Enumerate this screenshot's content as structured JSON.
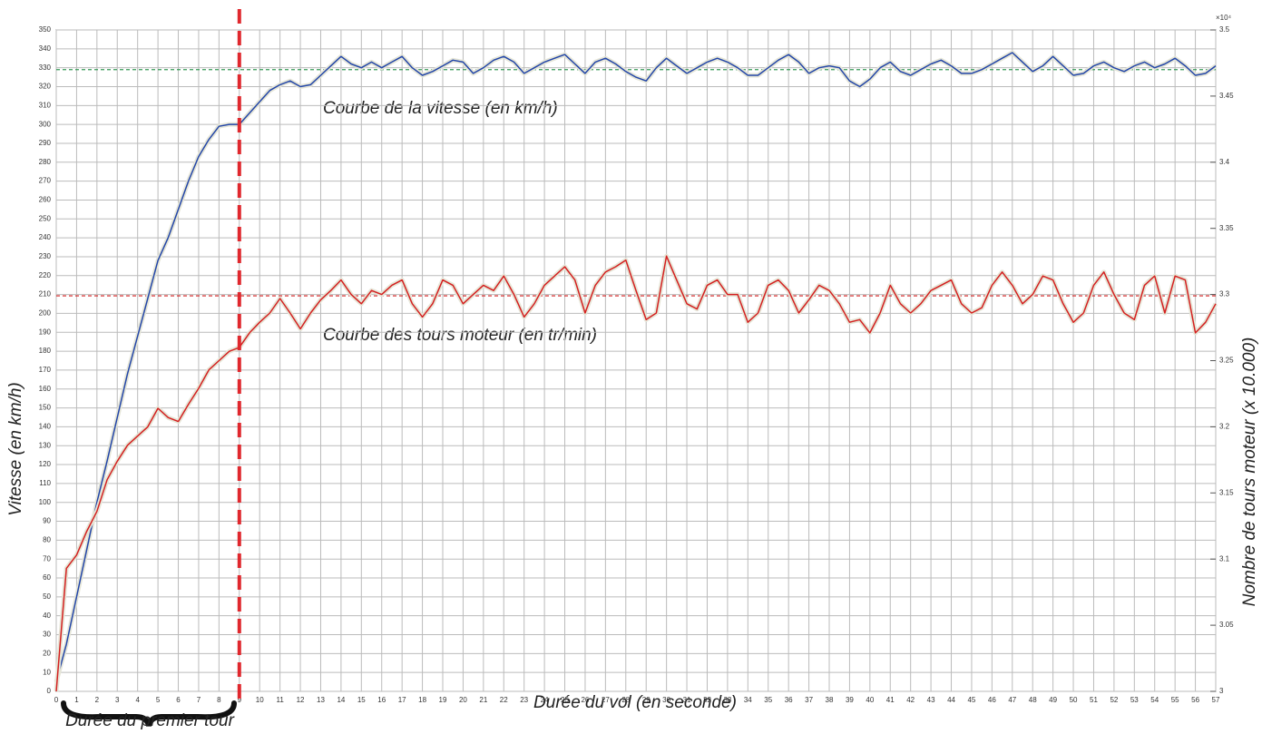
{
  "chart_data": {
    "type": "line",
    "x_label": "Durée du vol (en seconde)",
    "y_label": "Vitesse (en km/h)",
    "y2_label": "Nombre de tours moteur  (x 10.000)",
    "y2_multiplier": "×10⁴",
    "annotations": [
      "Courbe de la vitesse (en km/h)",
      "Courbe des tours moteur (en tr/min)",
      "Durée du premier tour"
    ],
    "grid": true,
    "xlim": [
      0,
      57
    ],
    "xticks": [
      0,
      1,
      2,
      3,
      4,
      5,
      6,
      7,
      8,
      9,
      10,
      11,
      12,
      13,
      14,
      15,
      16,
      17,
      18,
      19,
      20,
      21,
      22,
      23,
      24,
      25,
      26,
      27,
      28,
      29,
      30,
      31,
      32,
      33,
      34,
      35,
      36,
      37,
      38,
      39,
      40,
      41,
      42,
      43,
      44,
      45,
      46,
      47,
      48,
      49,
      50,
      51,
      52,
      53,
      54,
      55,
      56,
      57
    ],
    "ylim": [
      0,
      350
    ],
    "yticks": [
      0,
      10,
      20,
      30,
      40,
      50,
      60,
      70,
      80,
      90,
      100,
      110,
      120,
      130,
      140,
      150,
      160,
      170,
      180,
      190,
      200,
      210,
      220,
      230,
      240,
      250,
      260,
      270,
      280,
      290,
      300,
      310,
      320,
      330,
      340,
      350
    ],
    "y2lim": [
      3,
      3.5
    ],
    "y2ticks": [
      3,
      3.05,
      3.1,
      3.15,
      3.2,
      3.25,
      3.3,
      3.35,
      3.4,
      3.45,
      3.5
    ],
    "x": [
      0,
      0.5,
      1,
      1.5,
      2,
      2.5,
      3,
      3.5,
      4,
      4.5,
      5,
      5.5,
      6,
      6.5,
      7,
      7.5,
      8,
      8.5,
      9,
      9.5,
      10,
      10.5,
      11,
      11.5,
      12,
      12.5,
      13,
      13.5,
      14,
      14.5,
      15,
      15.5,
      16,
      16.5,
      17,
      17.5,
      18,
      18.5,
      19,
      19.5,
      20,
      20.5,
      21,
      21.5,
      22,
      22.5,
      23,
      23.5,
      24,
      24.5,
      25,
      25.5,
      26,
      26.5,
      27,
      27.5,
      28,
      28.5,
      29,
      29.5,
      30,
      30.5,
      31,
      31.5,
      32,
      32.5,
      33,
      33.5,
      34,
      34.5,
      35,
      35.5,
      36,
      36.5,
      37,
      37.5,
      38,
      38.5,
      39,
      39.5,
      40,
      40.5,
      41,
      41.5,
      42,
      42.5,
      43,
      43.5,
      44,
      44.5,
      45,
      45.5,
      46,
      46.5,
      47,
      47.5,
      48,
      48.5,
      49,
      49.5,
      50,
      50.5,
      51,
      51.5,
      52,
      52.5,
      53,
      53.5,
      54,
      54.5,
      55,
      55.5,
      56,
      56.5,
      57
    ],
    "series": [
      {
        "color": "#2346a8",
        "values": [
          5,
          25,
          50,
          75,
          100,
          122,
          145,
          168,
          188,
          208,
          228,
          240,
          255,
          270,
          283,
          292,
          299,
          300,
          300,
          306,
          312,
          318,
          321,
          323,
          320,
          321,
          326,
          331,
          336,
          332,
          330,
          333,
          330,
          333,
          336,
          330,
          326,
          328,
          331,
          334,
          333,
          327,
          330,
          334,
          336,
          333,
          327,
          330,
          333,
          335,
          337,
          332,
          327,
          333,
          335,
          332,
          328,
          325,
          323,
          330,
          335,
          331,
          327,
          330,
          333,
          335,
          333,
          330,
          326,
          326,
          330,
          334,
          337,
          333,
          327,
          330,
          331,
          330,
          323,
          320,
          324,
          330,
          333,
          328,
          326,
          329,
          332,
          334,
          331,
          327,
          327,
          329,
          332,
          335,
          338,
          333,
          328,
          331,
          336,
          331,
          326,
          327,
          331,
          333,
          330,
          328,
          331,
          333,
          330,
          332,
          335,
          331,
          326,
          327,
          331
        ]
      },
      {
        "color": "#d42020",
        "axis": "y2",
        "values": [
          3,
          3.093,
          3.103,
          3.121,
          3.136,
          3.16,
          3.174,
          3.186,
          3.193,
          3.2,
          3.214,
          3.207,
          3.204,
          3.217,
          3.229,
          3.243,
          3.25,
          3.257,
          3.26,
          3.271,
          3.279,
          3.286,
          3.297,
          3.286,
          3.274,
          3.286,
          3.296,
          3.303,
          3.311,
          3.3,
          3.293,
          3.303,
          3.3,
          3.307,
          3.311,
          3.293,
          3.283,
          3.293,
          3.311,
          3.307,
          3.293,
          3.3,
          3.307,
          3.303,
          3.314,
          3.3,
          3.283,
          3.293,
          3.307,
          3.314,
          3.321,
          3.311,
          3.286,
          3.307,
          3.317,
          3.321,
          3.326,
          3.303,
          3.281,
          3.286,
          3.329,
          3.311,
          3.293,
          3.289,
          3.307,
          3.311,
          3.3,
          3.3,
          3.279,
          3.286,
          3.307,
          3.311,
          3.303,
          3.286,
          3.296,
          3.307,
          3.303,
          3.293,
          3.279,
          3.281,
          3.271,
          3.286,
          3.307,
          3.293,
          3.286,
          3.293,
          3.303,
          3.307,
          3.311,
          3.293,
          3.286,
          3.29,
          3.307,
          3.317,
          3.307,
          3.293,
          3.3,
          3.314,
          3.311,
          3.293,
          3.279,
          3.286,
          3.307,
          3.317,
          3.3,
          3.286,
          3.281,
          3.307,
          3.314,
          3.286,
          3.314,
          3.311,
          3.271,
          3.279,
          3.293
        ]
      }
    ],
    "hlines": [
      {
        "value": 329,
        "color": "#3a9a5a"
      },
      {
        "value": 3.299,
        "axis": "y2",
        "color": "#d42020"
      }
    ],
    "vline": {
      "value": 9,
      "color": "#e0282e"
    }
  }
}
